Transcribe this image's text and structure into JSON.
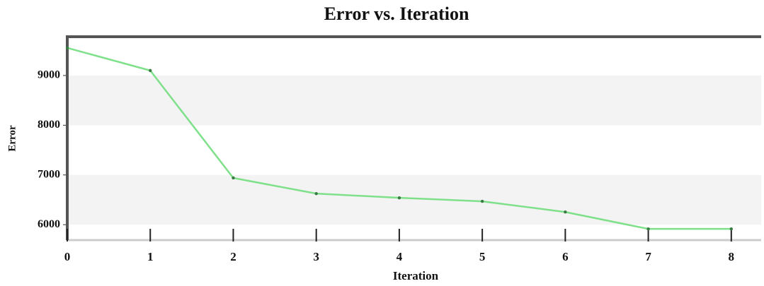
{
  "chart_data": {
    "type": "line",
    "title": "Error vs. Iteration",
    "x_label": "Iteration",
    "y_label": "Error",
    "x": [
      0,
      1,
      2,
      3,
      4,
      5,
      6,
      7,
      8
    ],
    "series": [
      {
        "name": "Error",
        "color": "#7fe08a",
        "values": [
          9555,
          9100,
          6940,
          6625,
          6540,
          6470,
          6255,
          5915,
          5915
        ]
      }
    ],
    "xlim": [
      0,
      8.36
    ],
    "xticks": [
      0,
      1,
      2,
      3,
      4,
      5,
      6,
      7,
      8
    ],
    "ylim": [
      5690,
      9780
    ],
    "yticks": [
      6000,
      7000,
      8000,
      9000
    ],
    "grid": true
  }
}
